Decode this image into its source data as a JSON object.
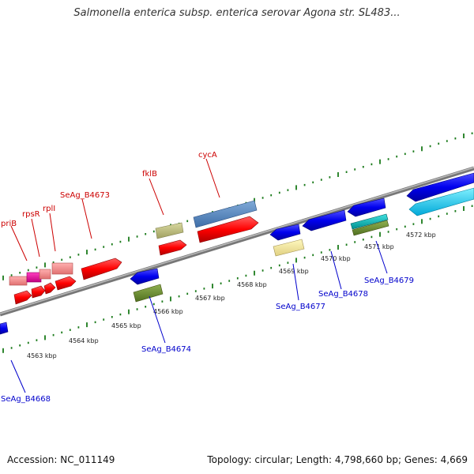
{
  "title": "Salmonella enterica subsp. enterica serovar Agona str. SL483...",
  "footer": {
    "accession": "Accession: NC_011149",
    "topology": "Topology: circular; Length: 4,798,660 bp; Genes: 4,669"
  },
  "ticks": [
    "4563 kbp",
    "4564 kbp",
    "4565 kbp",
    "4566 kbp",
    "4567 kbp",
    "4568 kbp",
    "4569 kbp",
    "4570 kbp",
    "4571 kbp",
    "4572 kbp"
  ],
  "forward_labels": [
    "priB",
    "rpsR",
    "rplI",
    "SeAg_B4673",
    "fklB",
    "cycA"
  ],
  "reverse_labels": [
    "SeAg_B4668",
    "SeAg_B4674",
    "SeAg_B4677",
    "SeAg_B4678",
    "SeAg_B4679"
  ],
  "colors": {
    "forward_label": "#cc0000",
    "reverse_label": "#0000cc",
    "tick": "#1a7a1a",
    "backbone": "#888888"
  }
}
